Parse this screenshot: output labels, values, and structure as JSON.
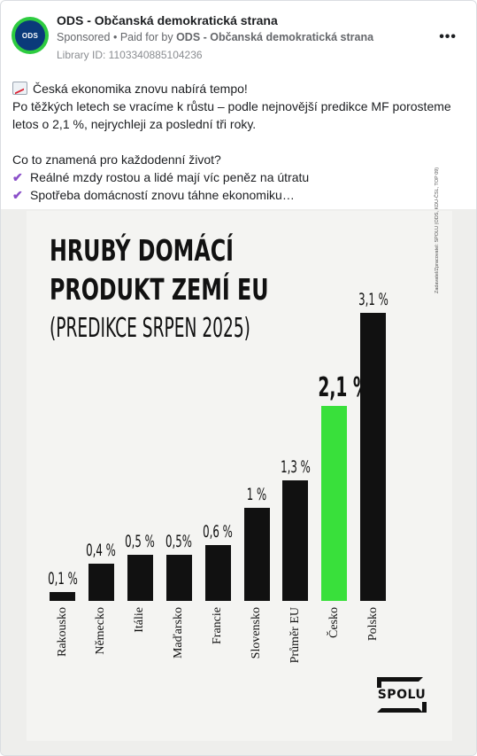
{
  "post": {
    "page_name": "ODS - Občanská demokratická strana",
    "avatar_text": "ODS",
    "sponsored": "Sponsored",
    "paid_for_prefix": "Paid for by",
    "paid_for_name": "ODS - Občanská demokratická strana",
    "library_id": "Library ID: 1103340885104236",
    "more_icon": "more-horizontal-icon",
    "text": {
      "line1": "Česká ekonomika znovu nabírá tempo!",
      "line2": "Po těžkých letech se vracíme k růstu – podle nejnovější predikce MF porosteme",
      "line3": "letos o 2,1 %, nejrychleji za poslední tři roky.",
      "line4": "Co to znamená pro každodenní život?",
      "bullet1": "Reálné mzdy rostou a lidé mají víc peněz na útratu",
      "bullet2": "Spotřeba domácností znovu táhne ekonomiku…"
    }
  },
  "poster": {
    "title_line1": "HRUBÝ DOMÁCÍ",
    "title_line2": "PRODUKT ZEMÍ EU",
    "subtitle": "(PREDIKCE SRPEN 2025)",
    "side_note": "Zadavatel/Zpracovatel: SPOLU (ODS, KDU-ČSL, TOP 09)",
    "logo_text": "SPOLU",
    "highlight_color": "#39e03b"
  },
  "chart_data": {
    "type": "bar",
    "categories": [
      "Rakousko",
      "Německo",
      "Itálie",
      "Maďarsko",
      "Francie",
      "Slovensko",
      "Průměr EU",
      "Česko",
      "Polsko"
    ],
    "values": [
      0.1,
      0.4,
      0.5,
      0.5,
      0.6,
      1.0,
      1.3,
      2.1,
      3.1
    ],
    "value_labels": [
      "0,1 %",
      "0,4 %",
      "0,5 %",
      "0,5%",
      "0,6 %",
      "1 %",
      "1,3 %",
      "2,1 %",
      "3,1 %"
    ],
    "highlight": "Česko",
    "title": "HRUBÝ DOMÁCÍ PRODUKT ZEMÍ EU",
    "subtitle": "(PREDIKCE SRPEN 2025)",
    "ylim": [
      0,
      3.1
    ],
    "grid": false
  }
}
